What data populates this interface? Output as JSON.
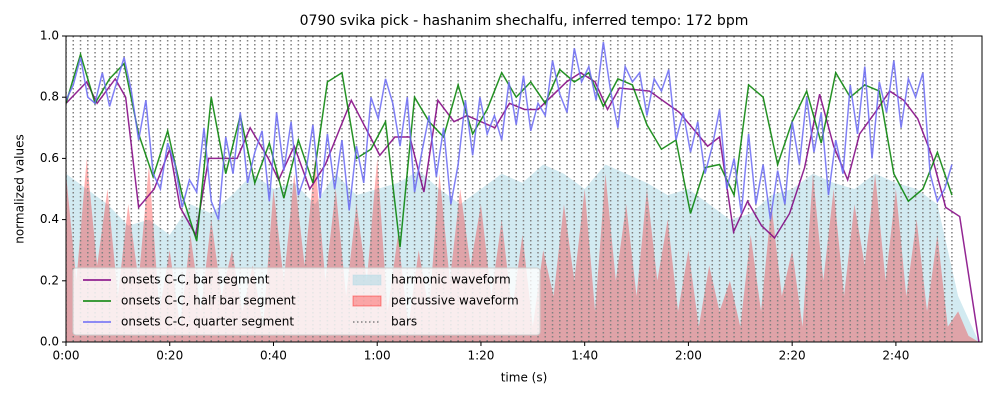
{
  "chart_data": {
    "type": "line",
    "title": "0790 svika pick - hashanim shechalfu, inferred tempo: 172 bpm",
    "xlabel": "time (s)",
    "ylabel": "normalized values",
    "xlim": [
      0,
      176.6
    ],
    "ylim": [
      0,
      1
    ],
    "xticks": [
      {
        "value": 0,
        "label": "0:00"
      },
      {
        "value": 20,
        "label": "0:20"
      },
      {
        "value": 40,
        "label": "0:40"
      },
      {
        "value": 60,
        "label": "1:00"
      },
      {
        "value": 80,
        "label": "1:20"
      },
      {
        "value": 100,
        "label": "1:40"
      },
      {
        "value": 120,
        "label": "2:00"
      },
      {
        "value": 140,
        "label": "2:20"
      },
      {
        "value": 160,
        "label": "2:40"
      }
    ],
    "yticks": [
      {
        "value": 0,
        "label": "0.0"
      },
      {
        "value": 0.2,
        "label": "0.2"
      },
      {
        "value": 0.4,
        "label": "0.4"
      },
      {
        "value": 0.6,
        "label": "0.6"
      },
      {
        "value": 0.8,
        "label": "0.8"
      },
      {
        "value": 1,
        "label": "1.0"
      }
    ],
    "legend": "lower left",
    "areas": [
      {
        "name": "harmonic waveform",
        "color": "#add8e6",
        "x": [
          0,
          4,
          8,
          12,
          16,
          20,
          24,
          28,
          32,
          36,
          40,
          44,
          48,
          52,
          56,
          60,
          64,
          68,
          72,
          76,
          80,
          84,
          88,
          92,
          96,
          100,
          104,
          108,
          112,
          116,
          120,
          124,
          128,
          132,
          136,
          140,
          144,
          148,
          152,
          156,
          160,
          164,
          168,
          172,
          176
        ],
        "values": [
          0.55,
          0.5,
          0.45,
          0.38,
          0.4,
          0.35,
          0.45,
          0.42,
          0.48,
          0.55,
          0.5,
          0.52,
          0.45,
          0.55,
          0.48,
          0.5,
          0.52,
          0.56,
          0.5,
          0.45,
          0.5,
          0.55,
          0.52,
          0.58,
          0.55,
          0.5,
          0.58,
          0.55,
          0.52,
          0.48,
          0.5,
          0.45,
          0.4,
          0.42,
          0.48,
          0.5,
          0.55,
          0.52,
          0.5,
          0.55,
          0.52,
          0.5,
          0.45,
          0.15,
          0.0
        ]
      },
      {
        "name": "percussive waveform",
        "color": "#ff0000",
        "x": [
          0,
          2,
          4,
          6,
          8,
          10,
          12,
          14,
          16,
          18,
          20,
          22,
          24,
          26,
          28,
          30,
          32,
          34,
          36,
          38,
          40,
          42,
          44,
          46,
          48,
          50,
          52,
          54,
          56,
          58,
          60,
          62,
          64,
          66,
          68,
          70,
          72,
          74,
          76,
          78,
          80,
          82,
          84,
          86,
          88,
          90,
          92,
          94,
          96,
          98,
          100,
          102,
          104,
          106,
          108,
          110,
          112,
          114,
          116,
          118,
          120,
          122,
          124,
          126,
          128,
          130,
          132,
          134,
          136,
          138,
          140,
          142,
          144,
          146,
          148,
          150,
          152,
          154,
          156,
          158,
          160,
          162,
          164,
          166,
          168,
          170,
          172,
          174,
          176
        ],
        "values": [
          0.55,
          0.2,
          0.6,
          0.25,
          0.5,
          0.15,
          0.45,
          0.2,
          0.58,
          0.1,
          0.3,
          0.05,
          0.35,
          0.1,
          0.4,
          0.15,
          0.3,
          0.1,
          0.25,
          0.05,
          0.5,
          0.2,
          0.55,
          0.25,
          0.6,
          0.2,
          0.5,
          0.15,
          0.45,
          0.2,
          0.6,
          0.1,
          0.35,
          0.05,
          0.3,
          0.1,
          0.55,
          0.2,
          0.5,
          0.25,
          0.45,
          0.15,
          0.4,
          0.1,
          0.35,
          0.05,
          0.3,
          0.15,
          0.45,
          0.2,
          0.5,
          0.1,
          0.55,
          0.2,
          0.45,
          0.15,
          0.5,
          0.2,
          0.4,
          0.1,
          0.3,
          0.05,
          0.25,
          0.1,
          0.2,
          0.05,
          0.35,
          0.1,
          0.45,
          0.15,
          0.3,
          0.05,
          0.55,
          0.2,
          0.5,
          0.15,
          0.45,
          0.25,
          0.55,
          0.2,
          0.5,
          0.15,
          0.4,
          0.1,
          0.35,
          0.05,
          0.1,
          0.02,
          0.0
        ]
      }
    ],
    "bars": {
      "name": "bars",
      "color": "#808080",
      "x": [
        0,
        1.4,
        2.8,
        4.2,
        5.6,
        7,
        8.4,
        9.8,
        11.2,
        12.6,
        14,
        15.4,
        16.8,
        18.2,
        19.6,
        21,
        22.4,
        23.8,
        25.2,
        26.6,
        28,
        29.4,
        30.8,
        32.2,
        33.6,
        35,
        36.4,
        37.8,
        39.2,
        40.6,
        42,
        43.4,
        44.8,
        46.2,
        47.6,
        49,
        50.4,
        51.8,
        53.2,
        54.6,
        56,
        57.4,
        58.8,
        60.2,
        61.6,
        63,
        64.4,
        65.8,
        67.2,
        68.6,
        70,
        71.4,
        72.8,
        74.2,
        75.6,
        77,
        78.4,
        79.8,
        81.2,
        82.6,
        84,
        85.4,
        86.8,
        88.2,
        89.6,
        91,
        92.4,
        93.8,
        95.2,
        96.6,
        98,
        99.4,
        100.8,
        102.2,
        103.6,
        105,
        106.4,
        107.8,
        109.2,
        110.6,
        112,
        113.4,
        114.8,
        116.2,
        117.6,
        119,
        120.4,
        121.8,
        123.2,
        124.6,
        126,
        127.4,
        128.8,
        130.2,
        131.6,
        133,
        134.4,
        135.8,
        137.2,
        138.6,
        140,
        141.4,
        142.8,
        144.2,
        145.6,
        147,
        148.4,
        149.8,
        151.2,
        152.6,
        154,
        155.4,
        156.8,
        158.2,
        159.6,
        161,
        162.4,
        163.8,
        165.2,
        166.6,
        168,
        169.4,
        170.8
      ]
    },
    "series": [
      {
        "name": "onsets C-C, bar segment",
        "color": "#800080",
        "x": [
          0,
          4,
          6,
          9.5,
          11.5,
          14,
          17,
          20,
          22,
          25,
          27.5,
          33,
          35.5,
          39,
          41,
          44,
          47,
          50,
          55,
          60.5,
          63.4,
          66.3,
          69,
          71.7,
          74.8,
          77.3,
          82.7,
          85.5,
          88.4,
          91,
          96.5,
          99.2,
          102,
          104.4,
          106.7,
          112.5,
          118.3,
          123.7,
          126,
          128.7,
          131.4,
          134.1,
          136.6,
          139.5,
          142.4,
          145.3,
          148,
          150.7,
          153,
          156,
          158.8,
          161.5,
          164.2,
          166.9,
          169.6,
          172.3,
          176
        ],
        "values": [
          0.78,
          0.85,
          0.78,
          0.86,
          0.8,
          0.44,
          0.5,
          0.63,
          0.44,
          0.35,
          0.6,
          0.6,
          0.7,
          0.6,
          0.53,
          0.64,
          0.5,
          0.58,
          0.79,
          0.61,
          0.67,
          0.67,
          0.49,
          0.79,
          0.72,
          0.74,
          0.7,
          0.78,
          0.76,
          0.76,
          0.85,
          0.88,
          0.85,
          0.76,
          0.83,
          0.82,
          0.75,
          0.64,
          0.67,
          0.36,
          0.46,
          0.38,
          0.34,
          0.42,
          0.57,
          0.81,
          0.64,
          0.53,
          0.68,
          0.75,
          0.82,
          0.79,
          0.73,
          0.61,
          0.44,
          0.41,
          0.0
        ]
      },
      {
        "name": "onsets C-C, half bar segment",
        "color": "#008000",
        "x": [
          0,
          2.8,
          5.6,
          8.4,
          11.2,
          14,
          16.8,
          19.6,
          22.4,
          25.2,
          28,
          30.8,
          33.6,
          36.4,
          39.2,
          42,
          44.8,
          47.6,
          50.4,
          53.2,
          56,
          58.8,
          61.6,
          64.4,
          67.2,
          70,
          72.8,
          75.6,
          78.4,
          81.2,
          84,
          86.8,
          89.6,
          92.4,
          95.2,
          98,
          100.8,
          103.6,
          106.4,
          109.2,
          112,
          114.8,
          117.6,
          120.4,
          123.2,
          126,
          128.8,
          131.6,
          134.4,
          137.2,
          140,
          142.8,
          145.6,
          148.4,
          151.2,
          154,
          156.8,
          159.6,
          162.4,
          165.2,
          168,
          170.8
        ],
        "values": [
          0.78,
          0.94,
          0.78,
          0.86,
          0.91,
          0.68,
          0.54,
          0.69,
          0.48,
          0.33,
          0.8,
          0.55,
          0.74,
          0.52,
          0.65,
          0.47,
          0.66,
          0.52,
          0.85,
          0.88,
          0.6,
          0.63,
          0.72,
          0.31,
          0.8,
          0.72,
          0.67,
          0.84,
          0.68,
          0.76,
          0.88,
          0.8,
          0.85,
          0.78,
          0.89,
          0.85,
          0.88,
          0.77,
          0.86,
          0.84,
          0.71,
          0.63,
          0.66,
          0.42,
          0.57,
          0.58,
          0.48,
          0.84,
          0.8,
          0.58,
          0.72,
          0.82,
          0.65,
          0.88,
          0.8,
          0.84,
          0.82,
          0.55,
          0.46,
          0.5,
          0.62,
          0.48
        ]
      },
      {
        "name": "onsets C-C, quarter segment",
        "color": "#6b6bf5",
        "x": [
          0,
          1.4,
          2.8,
          4.2,
          5.6,
          7,
          8.4,
          9.8,
          11.2,
          12.6,
          14,
          15.4,
          16.8,
          18.2,
          19.6,
          21,
          22.4,
          23.8,
          25.2,
          26.6,
          28,
          29.4,
          30.8,
          32.2,
          33.6,
          35,
          36.4,
          37.8,
          39.2,
          40.6,
          42,
          43.4,
          44.8,
          46.2,
          47.6,
          49,
          50.4,
          51.8,
          53.2,
          54.6,
          56,
          57.4,
          58.8,
          60.2,
          61.6,
          63,
          64.4,
          65.8,
          67.2,
          68.6,
          70,
          71.4,
          72.8,
          74.2,
          75.6,
          77,
          78.4,
          79.8,
          81.2,
          82.6,
          84,
          85.4,
          86.8,
          88.2,
          89.6,
          91,
          92.4,
          93.8,
          95.2,
          96.6,
          98,
          99.4,
          100.8,
          102.2,
          103.6,
          105,
          106.4,
          107.8,
          109.2,
          110.6,
          112,
          113.4,
          114.8,
          116.2,
          117.6,
          119,
          120.4,
          121.8,
          123.2,
          124.6,
          126,
          127.4,
          128.8,
          130.2,
          131.6,
          133,
          134.4,
          135.8,
          137.2,
          138.6,
          140,
          141.4,
          142.8,
          144.2,
          145.6,
          147,
          148.4,
          149.8,
          151.2,
          152.6,
          154,
          155.4,
          156.8,
          158.2,
          159.6,
          161,
          162.4,
          163.8,
          165.2,
          166.6,
          168,
          169.4,
          170.8
        ],
        "values": [
          0.79,
          0.84,
          0.93,
          0.8,
          0.78,
          0.88,
          0.77,
          0.85,
          0.93,
          0.82,
          0.66,
          0.79,
          0.55,
          0.5,
          0.65,
          0.58,
          0.44,
          0.53,
          0.49,
          0.7,
          0.46,
          0.4,
          0.67,
          0.55,
          0.75,
          0.52,
          0.62,
          0.69,
          0.46,
          0.75,
          0.56,
          0.72,
          0.48,
          0.55,
          0.71,
          0.47,
          0.68,
          0.5,
          0.66,
          0.43,
          0.64,
          0.52,
          0.8,
          0.73,
          0.86,
          0.78,
          0.64,
          0.8,
          0.49,
          0.62,
          0.74,
          0.54,
          0.7,
          0.45,
          0.58,
          0.79,
          0.61,
          0.8,
          0.68,
          0.74,
          0.66,
          0.85,
          0.71,
          0.87,
          0.69,
          0.78,
          0.74,
          0.92,
          0.81,
          0.75,
          0.96,
          0.85,
          0.9,
          0.79,
          0.98,
          0.82,
          0.7,
          0.9,
          0.85,
          0.88,
          0.74,
          0.86,
          0.82,
          0.89,
          0.66,
          0.75,
          0.62,
          0.72,
          0.55,
          0.64,
          0.76,
          0.5,
          0.6,
          0.42,
          0.68,
          0.45,
          0.58,
          0.4,
          0.56,
          0.45,
          0.72,
          0.58,
          0.8,
          0.62,
          0.75,
          0.48,
          0.66,
          0.55,
          0.84,
          0.68,
          0.9,
          0.6,
          0.85,
          0.75,
          0.92,
          0.7,
          0.86,
          0.8,
          0.88,
          0.55,
          0.46,
          0.5,
          0.58
        ]
      }
    ]
  }
}
